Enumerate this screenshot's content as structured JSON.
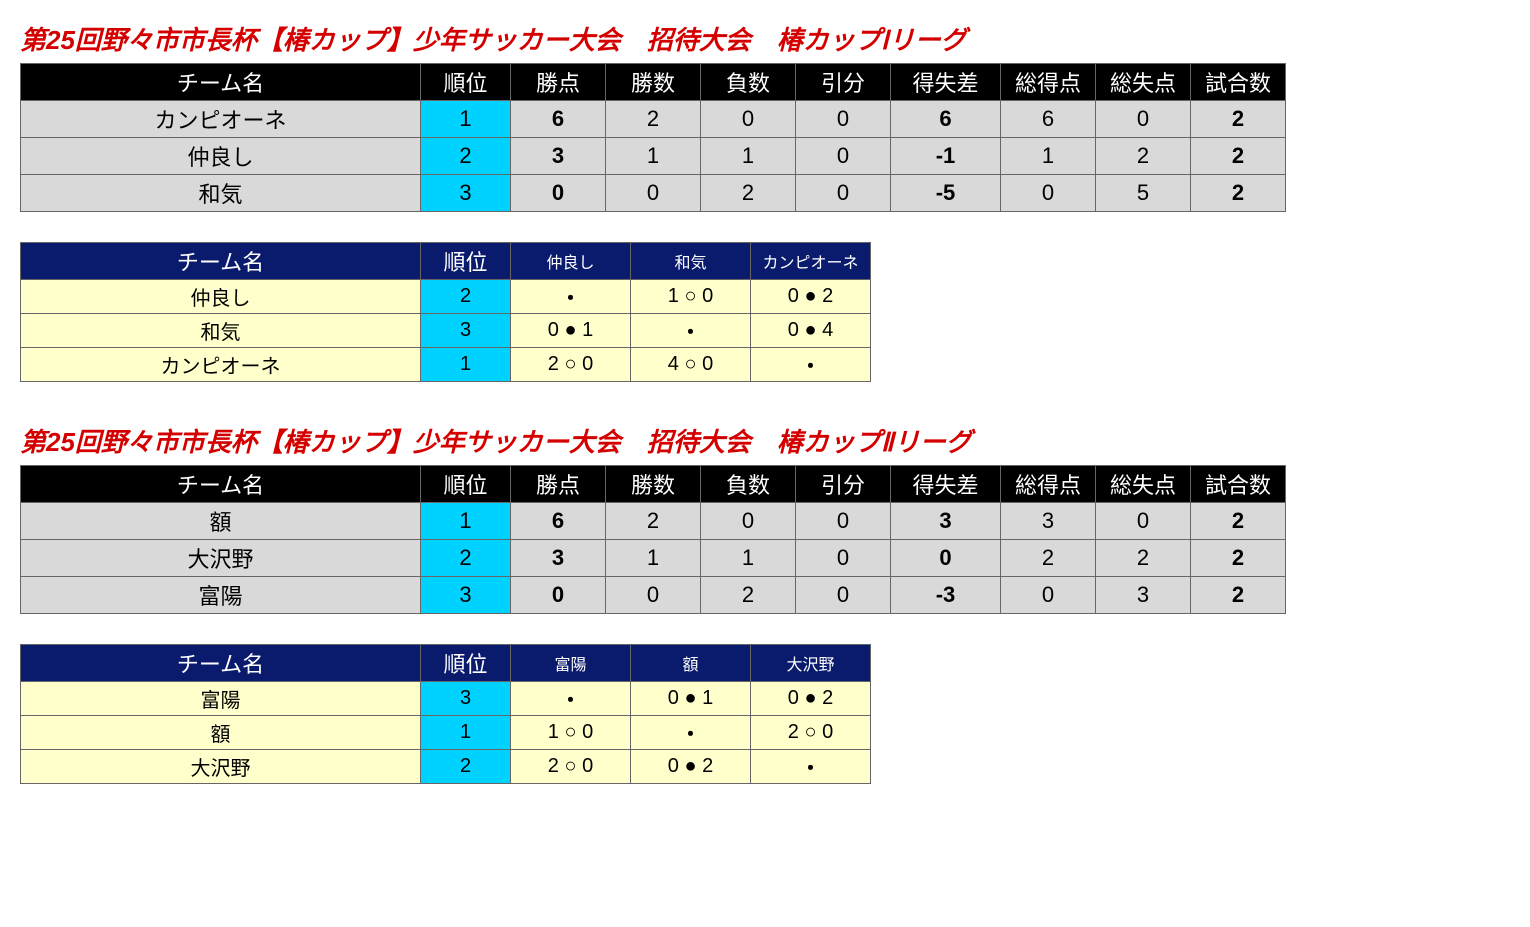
{
  "colors": {
    "title": "#d40000",
    "standings_header_bg": "#000000",
    "standings_header_fg": "#ffffff",
    "standings_row_bg": "#d9d9d9",
    "rank_cell_bg": "#00d2ff",
    "matrix_header_bg": "#0a1b6e",
    "matrix_header_fg": "#ffffff",
    "matrix_row_bg": "#ffffcc"
  },
  "labels": {
    "team": "チーム名",
    "rank": "順位",
    "pts": "勝点",
    "w": "勝数",
    "l": "負数",
    "d": "引分",
    "gd": "得失差",
    "gf": "総得点",
    "ga": "総失点",
    "gp": "試合数"
  },
  "leagues": [
    {
      "title": "第25回野々市市長杯【椿カップ】少年サッカー大会　招待大会　椿カップⅠリーグ",
      "standings": [
        {
          "team": "カンピオーネ",
          "rank": "1",
          "pts": "6",
          "w": "2",
          "l": "0",
          "d": "0",
          "gd": "6",
          "gf": "6",
          "ga": "0",
          "gp": "2"
        },
        {
          "team": "仲良し",
          "rank": "2",
          "pts": "3",
          "w": "1",
          "l": "1",
          "d": "0",
          "gd": "-1",
          "gf": "1",
          "ga": "2",
          "gp": "2"
        },
        {
          "team": "和気",
          "rank": "3",
          "pts": "0",
          "w": "0",
          "l": "2",
          "d": "0",
          "gd": "-5",
          "gf": "0",
          "ga": "5",
          "gp": "2"
        }
      ],
      "matrix": {
        "opponents": [
          "仲良し",
          "和気",
          "カンピオーネ"
        ],
        "rows": [
          {
            "team": "仲良し",
            "rank": "2",
            "cells": [
              "・",
              "1 ○ 0",
              "0 ● 2"
            ]
          },
          {
            "team": "和気",
            "rank": "3",
            "cells": [
              "0 ● 1",
              "・",
              "0 ● 4"
            ]
          },
          {
            "team": "カンピオーネ",
            "rank": "1",
            "cells": [
              "2 ○ 0",
              "4 ○ 0",
              "・"
            ]
          }
        ]
      }
    },
    {
      "title": "第25回野々市市長杯【椿カップ】少年サッカー大会　招待大会　椿カップⅡリーグ",
      "standings": [
        {
          "team": "額",
          "rank": "1",
          "pts": "6",
          "w": "2",
          "l": "0",
          "d": "0",
          "gd": "3",
          "gf": "3",
          "ga": "0",
          "gp": "2"
        },
        {
          "team": "大沢野",
          "rank": "2",
          "pts": "3",
          "w": "1",
          "l": "1",
          "d": "0",
          "gd": "0",
          "gf": "2",
          "ga": "2",
          "gp": "2"
        },
        {
          "team": "富陽",
          "rank": "3",
          "pts": "0",
          "w": "0",
          "l": "2",
          "d": "0",
          "gd": "-3",
          "gf": "0",
          "ga": "3",
          "gp": "2"
        }
      ],
      "matrix": {
        "opponents": [
          "富陽",
          "額",
          "大沢野"
        ],
        "rows": [
          {
            "team": "富陽",
            "rank": "3",
            "cells": [
              "・",
              "0 ● 1",
              "0 ● 2"
            ]
          },
          {
            "team": "額",
            "rank": "1",
            "cells": [
              "1 ○ 0",
              "・",
              "2 ○ 0"
            ]
          },
          {
            "team": "大沢野",
            "rank": "2",
            "cells": [
              "2 ○ 0",
              "0 ● 2",
              "・"
            ]
          }
        ]
      }
    }
  ]
}
